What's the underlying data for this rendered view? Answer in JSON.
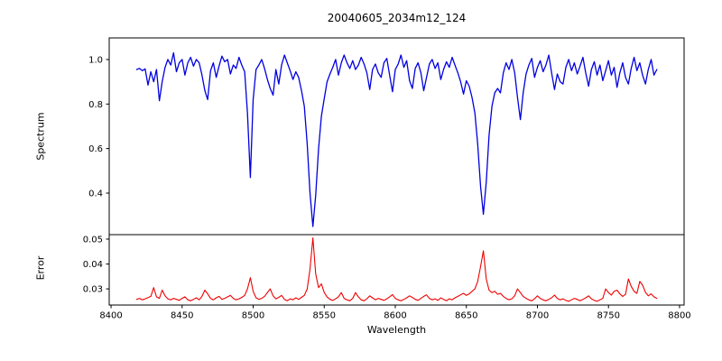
{
  "figure": {
    "background": "#ffffff",
    "axis_color": "#000000"
  },
  "chart_data": [
    {
      "type": "line",
      "panel": "top",
      "title": "20040605_2034m12_124",
      "ylabel": "Spectrum",
      "series_name": "spectrum",
      "color": "#0000e0",
      "line_width": 1.3,
      "xlim": [
        8398.7,
        8803.2
      ],
      "ylim": [
        0.2135,
        1.097
      ],
      "ytick_labels": [
        "1.0",
        "0.8",
        "0.6",
        "0.4"
      ],
      "grid": false,
      "x_start": 8418,
      "x_step": 2,
      "values": [
        0.955,
        0.96,
        0.95,
        0.958,
        0.885,
        0.945,
        0.9,
        0.955,
        0.815,
        0.9,
        0.965,
        1.0,
        0.975,
        1.03,
        0.945,
        0.985,
        1.0,
        0.93,
        0.985,
        1.01,
        0.97,
        1.0,
        0.985,
        0.93,
        0.86,
        0.82,
        0.95,
        0.985,
        0.92,
        0.97,
        1.015,
        0.99,
        1.0,
        0.935,
        0.975,
        0.96,
        1.01,
        0.975,
        0.945,
        0.76,
        0.47,
        0.82,
        0.955,
        0.975,
        1.0,
        0.96,
        0.91,
        0.87,
        0.84,
        0.955,
        0.89,
        0.975,
        1.02,
        0.985,
        0.95,
        0.91,
        0.945,
        0.92,
        0.86,
        0.79,
        0.62,
        0.4,
        0.25,
        0.39,
        0.6,
        0.745,
        0.825,
        0.9,
        0.935,
        0.965,
        1.0,
        0.93,
        0.985,
        1.02,
        0.985,
        0.96,
        0.995,
        0.955,
        0.975,
        1.01,
        0.98,
        0.94,
        0.865,
        0.955,
        0.98,
        0.94,
        0.92,
        0.985,
        1.005,
        0.93,
        0.855,
        0.955,
        0.98,
        1.02,
        0.965,
        0.995,
        0.905,
        0.87,
        0.96,
        0.985,
        0.94,
        0.86,
        0.92,
        0.98,
        1.0,
        0.96,
        0.985,
        0.91,
        0.955,
        0.99,
        0.965,
        1.01,
        0.975,
        0.94,
        0.9,
        0.845,
        0.905,
        0.88,
        0.83,
        0.76,
        0.62,
        0.43,
        0.305,
        0.45,
        0.66,
        0.79,
        0.85,
        0.87,
        0.85,
        0.94,
        0.985,
        0.955,
        1.0,
        0.94,
        0.83,
        0.73,
        0.85,
        0.935,
        0.975,
        1.005,
        0.92,
        0.965,
        0.995,
        0.945,
        0.975,
        1.02,
        0.94,
        0.865,
        0.935,
        0.9,
        0.89,
        0.965,
        1.0,
        0.95,
        0.985,
        0.935,
        0.97,
        1.01,
        0.94,
        0.88,
        0.955,
        0.99,
        0.93,
        0.975,
        0.905,
        0.95,
        0.995,
        0.93,
        0.965,
        0.875,
        0.94,
        0.985,
        0.92,
        0.89,
        0.96,
        1.01,
        0.95,
        0.985,
        0.93,
        0.89,
        0.955,
        1.0,
        0.93,
        0.955
      ]
    },
    {
      "type": "line",
      "panel": "bottom",
      "ylabel": "Error",
      "xlabel": "Wavelength",
      "series_name": "error",
      "color": "#ee0000",
      "line_width": 1.1,
      "xlim": [
        8398.7,
        8803.2
      ],
      "ylim": [
        0.0235,
        0.0518
      ],
      "ytick_labels": [
        "0.05",
        "0.04",
        "0.03"
      ],
      "xtick_labels": [
        "8400",
        "8450",
        "8500",
        "8550",
        "8600",
        "8650",
        "8700",
        "8750",
        "8800"
      ],
      "grid": false,
      "x_start": 8418,
      "x_step": 2,
      "values": [
        0.0258,
        0.0262,
        0.0256,
        0.026,
        0.0265,
        0.027,
        0.0305,
        0.0268,
        0.0262,
        0.0295,
        0.0272,
        0.026,
        0.0256,
        0.0262,
        0.0258,
        0.0254,
        0.0262,
        0.0268,
        0.0256,
        0.0252,
        0.0258,
        0.0264,
        0.0256,
        0.027,
        0.0295,
        0.028,
        0.0262,
        0.0256,
        0.0264,
        0.027,
        0.0258,
        0.0262,
        0.0268,
        0.0274,
        0.0262,
        0.0256,
        0.026,
        0.0266,
        0.0274,
        0.03,
        0.0345,
        0.029,
        0.0264,
        0.0258,
        0.0262,
        0.027,
        0.0285,
        0.03,
        0.0272,
        0.026,
        0.0266,
        0.0274,
        0.0258,
        0.0252,
        0.026,
        0.0256,
        0.0264,
        0.0258,
        0.0266,
        0.0274,
        0.03,
        0.038,
        0.0505,
        0.036,
        0.0305,
        0.032,
        0.0285,
        0.0268,
        0.0258,
        0.0254,
        0.026,
        0.0268,
        0.0285,
        0.0262,
        0.0256,
        0.0252,
        0.0262,
        0.0285,
        0.0268,
        0.0256,
        0.0252,
        0.026,
        0.0272,
        0.0264,
        0.0256,
        0.0262,
        0.0258,
        0.0254,
        0.026,
        0.0268,
        0.0277,
        0.0262,
        0.0256,
        0.0252,
        0.0258,
        0.0264,
        0.0272,
        0.0266,
        0.0258,
        0.0254,
        0.0262,
        0.027,
        0.0276,
        0.0262,
        0.0256,
        0.026,
        0.0254,
        0.0264,
        0.0258,
        0.0252,
        0.026,
        0.0256,
        0.0264,
        0.027,
        0.0276,
        0.0282,
        0.0274,
        0.028,
        0.029,
        0.03,
        0.033,
        0.039,
        0.0453,
        0.034,
        0.0295,
        0.0285,
        0.029,
        0.0278,
        0.0282,
        0.027,
        0.0262,
        0.0256,
        0.026,
        0.0272,
        0.03,
        0.0285,
        0.027,
        0.0262,
        0.0256,
        0.0252,
        0.026,
        0.0272,
        0.0262,
        0.0256,
        0.0252,
        0.0258,
        0.0264,
        0.0275,
        0.0262,
        0.0256,
        0.026,
        0.0254,
        0.025,
        0.0256,
        0.0262,
        0.0258,
        0.0252,
        0.0258,
        0.0264,
        0.0272,
        0.026,
        0.0254,
        0.025,
        0.0256,
        0.0262,
        0.03,
        0.0285,
        0.0275,
        0.029,
        0.0295,
        0.028,
        0.027,
        0.0278,
        0.034,
        0.031,
        0.029,
        0.0282,
        0.033,
        0.0315,
        0.0286,
        0.0272,
        0.028,
        0.0268,
        0.0262
      ]
    }
  ]
}
